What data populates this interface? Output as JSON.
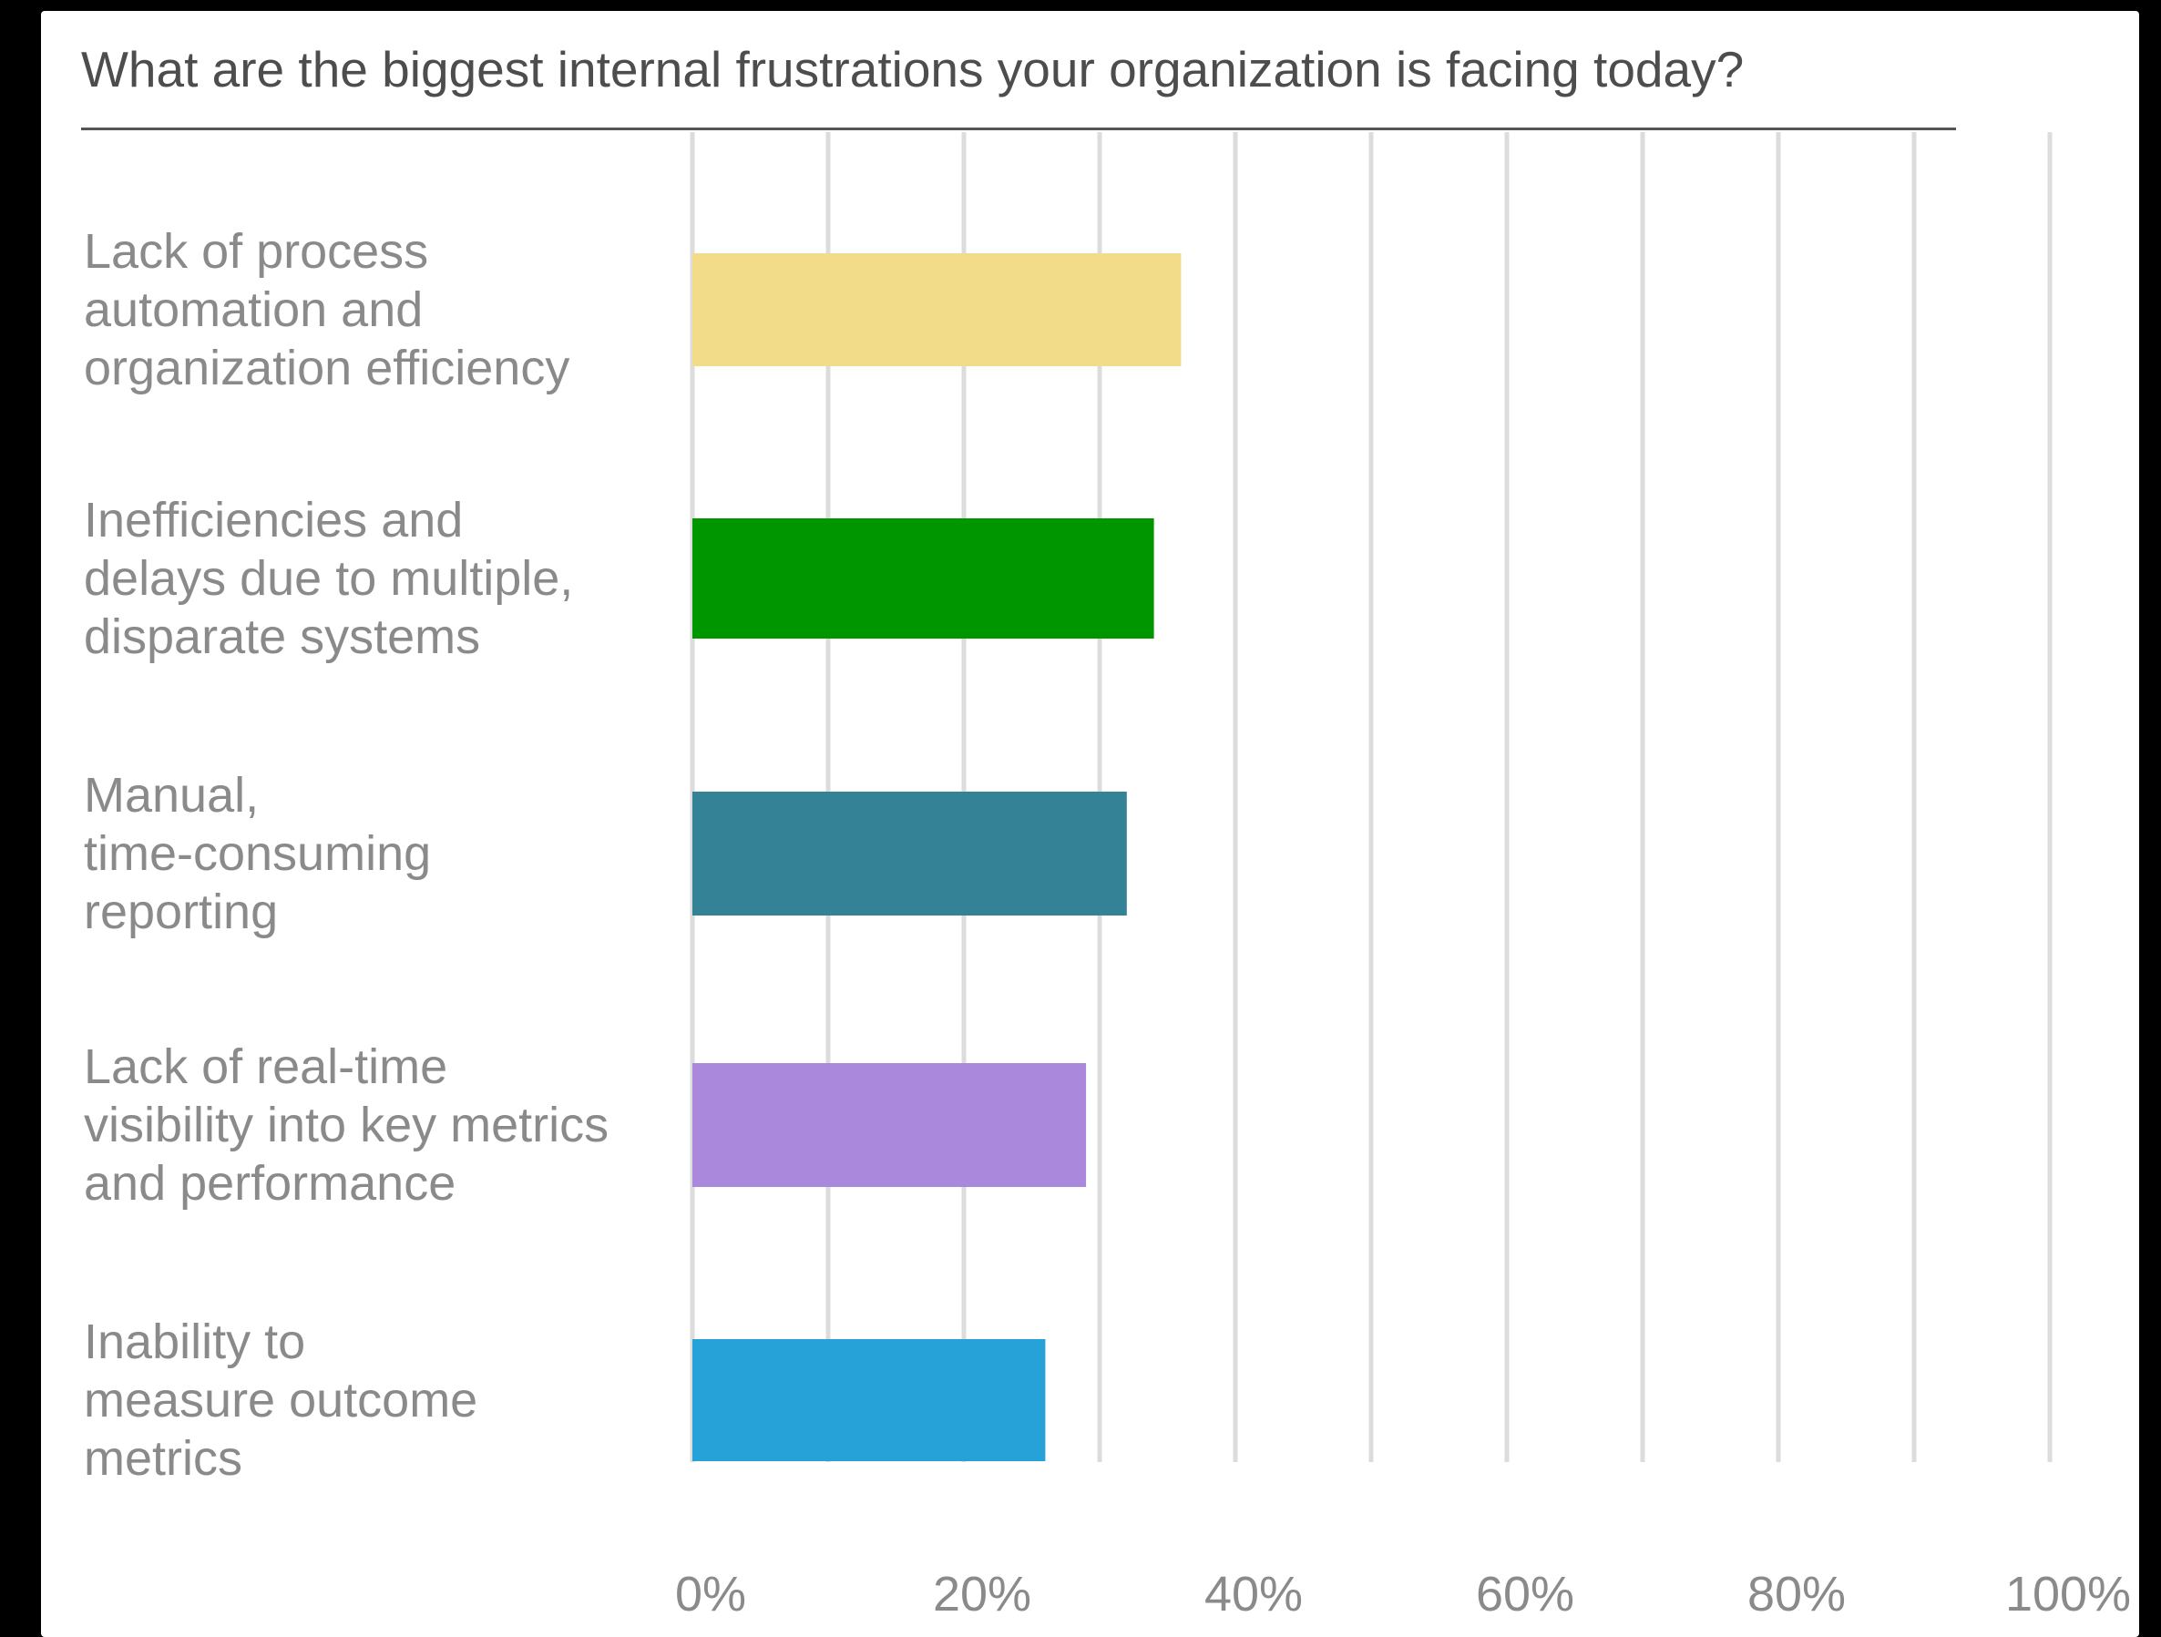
{
  "chart_data": {
    "type": "bar",
    "orientation": "horizontal",
    "title": "What are the biggest internal frustrations your organization is facing today?",
    "categories": [
      "Lack of process automation and organization efficiency",
      "Inefficiencies and delays due to multiple, disparate systems",
      "Manual, time-consuming reporting",
      "Lack of real-time visibility into key metrics and performance",
      "Inability to measure outcome metrics"
    ],
    "category_lines": [
      [
        "Lack of process",
        "automation and",
        "organization efficiency"
      ],
      [
        "Inefficiencies and",
        "delays due to multiple,",
        "disparate systems"
      ],
      [
        "Manual,",
        "time-consuming",
        "reporting"
      ],
      [
        "Lack of real-time",
        "visibility into key metrics",
        "and performance"
      ],
      [
        "Inability to",
        "measure outcome",
        "metrics"
      ]
    ],
    "values": [
      36,
      34,
      32,
      29,
      26
    ],
    "bar_colors": [
      "#f2dc8a",
      "#009600",
      "#348296",
      "#aa88dc",
      "#26a2d8"
    ],
    "xlim": [
      0,
      100
    ],
    "xticks": [
      0,
      20,
      40,
      60,
      80,
      100
    ],
    "xtick_labels": [
      "0%",
      "20%",
      "40%",
      "60%",
      "80%",
      "100%"
    ],
    "xlabel": "",
    "ylabel": "",
    "grid": "vertical",
    "legend": "none"
  }
}
